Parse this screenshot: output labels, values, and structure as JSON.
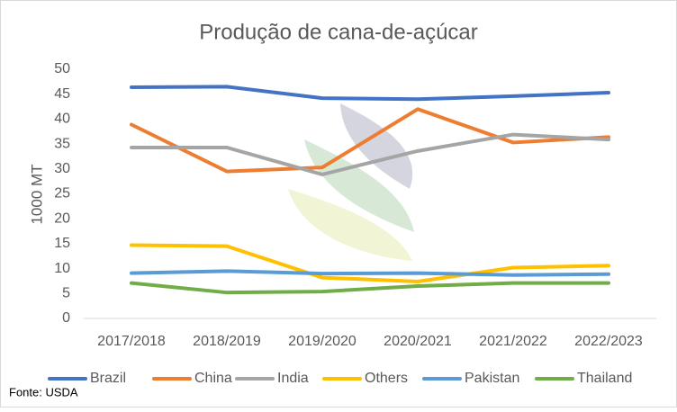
{
  "chart_data": {
    "type": "line",
    "title": "Produção de cana-de-açúcar",
    "y_label": "1000 MT",
    "source": "Fonte: USDA",
    "categories": [
      "2017/2018",
      "2018/2019",
      "2019/2020",
      "2020/2021",
      "2021/2022",
      "2022/2023"
    ],
    "series": [
      {
        "name": "Brazil",
        "color": "#4472c4",
        "values": [
          46.4,
          46.5,
          44.2,
          44.0,
          44.6,
          45.3
        ]
      },
      {
        "name": "China",
        "color": "#ed7d31",
        "values": [
          38.9,
          29.5,
          30.3,
          42.0,
          35.3,
          36.4
        ]
      },
      {
        "name": "India",
        "color": "#a5a5a5",
        "values": [
          34.3,
          34.3,
          28.9,
          33.6,
          36.9,
          35.9
        ]
      },
      {
        "name": "Others",
        "color": "#ffc000",
        "values": [
          14.7,
          14.5,
          8.2,
          7.4,
          10.2,
          10.6
        ]
      },
      {
        "name": "Pakistan",
        "color": "#5b9bd5",
        "values": [
          9.1,
          9.5,
          9.0,
          9.1,
          8.7,
          8.9
        ]
      },
      {
        "name": "Thailand",
        "color": "#70ad47",
        "values": [
          7.1,
          5.2,
          5.4,
          6.5,
          7.1,
          7.1
        ]
      }
    ],
    "ylim": [
      0,
      50
    ],
    "yticks": [
      0,
      5,
      10,
      15,
      20,
      25,
      30,
      35,
      40,
      45,
      50
    ],
    "legend": "bottom"
  }
}
